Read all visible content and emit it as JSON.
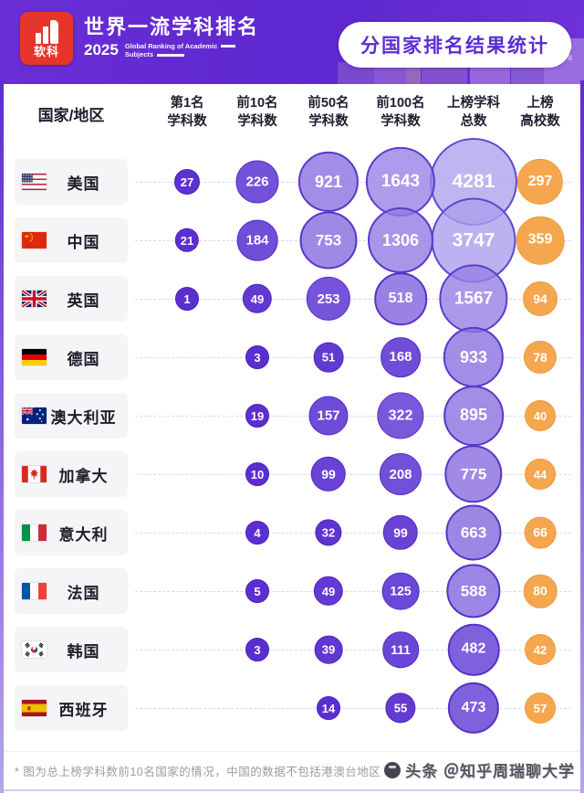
{
  "header": {
    "brand": "软科",
    "title": "世界一流学科排名",
    "year": "2025",
    "subtitle_line1": "Global Ranking of Academic",
    "subtitle_line2": "Subjects",
    "badge": "分国家排名结果统计"
  },
  "table": {
    "country_header": "国家/地区",
    "columns": [
      {
        "line1": "第1名",
        "line2": "学科数"
      },
      {
        "line1": "前10名",
        "line2": "学科数"
      },
      {
        "line1": "前50名",
        "line2": "学科数"
      },
      {
        "line1": "前100名",
        "line2": "学科数"
      },
      {
        "line1": "上榜学科",
        "line2": "总数"
      },
      {
        "line1": "上榜",
        "line2": "高校数"
      }
    ]
  },
  "chart_data": {
    "type": "table",
    "title": "分国家排名结果统计",
    "subtitle": "2025 世界一流学科排名 (Global Ranking of Academic Subjects)",
    "columns": [
      "第1名学科数",
      "前10名学科数",
      "前50名学科数",
      "前100名学科数",
      "上榜学科总数",
      "上榜高校数"
    ],
    "encoding": "bubble size proportional to value; purple bubbles = subject counts, orange bubbles = ranked-university counts",
    "rows": [
      {
        "country": "美国",
        "flag": "us",
        "values": [
          27,
          226,
          921,
          1643,
          4281,
          297
        ]
      },
      {
        "country": "中国",
        "flag": "cn",
        "values": [
          21,
          184,
          753,
          1306,
          3747,
          359
        ]
      },
      {
        "country": "英国",
        "flag": "gb",
        "values": [
          1,
          49,
          253,
          518,
          1567,
          94
        ]
      },
      {
        "country": "德国",
        "flag": "de",
        "values": [
          null,
          3,
          51,
          168,
          933,
          78
        ]
      },
      {
        "country": "澳大利亚",
        "flag": "au",
        "values": [
          null,
          19,
          157,
          322,
          895,
          40
        ]
      },
      {
        "country": "加拿大",
        "flag": "ca",
        "values": [
          null,
          10,
          99,
          208,
          775,
          44
        ]
      },
      {
        "country": "意大利",
        "flag": "it",
        "values": [
          null,
          4,
          32,
          99,
          663,
          66
        ]
      },
      {
        "country": "法国",
        "flag": "fr",
        "values": [
          null,
          5,
          49,
          125,
          588,
          80
        ]
      },
      {
        "country": "韩国",
        "flag": "kr",
        "values": [
          null,
          3,
          39,
          111,
          482,
          42
        ]
      },
      {
        "country": "西班牙",
        "flag": "es",
        "values": [
          null,
          null,
          14,
          55,
          473,
          57
        ]
      }
    ]
  },
  "colors": {
    "accent_purple": "#5b2dd1",
    "bubble_dark": "#5b2ed0",
    "bubble_light": "#afa4ee",
    "bubble_orange": "#f5a74f",
    "header_gradient_start": "#6a2ed6",
    "header_gradient_end": "#5e27cf"
  },
  "footnote": "* 图为总上榜学科数前10名国家的情况，中国的数据不包括港澳台地区",
  "watermark": "头条 ＠知乎周瑞聊大学"
}
